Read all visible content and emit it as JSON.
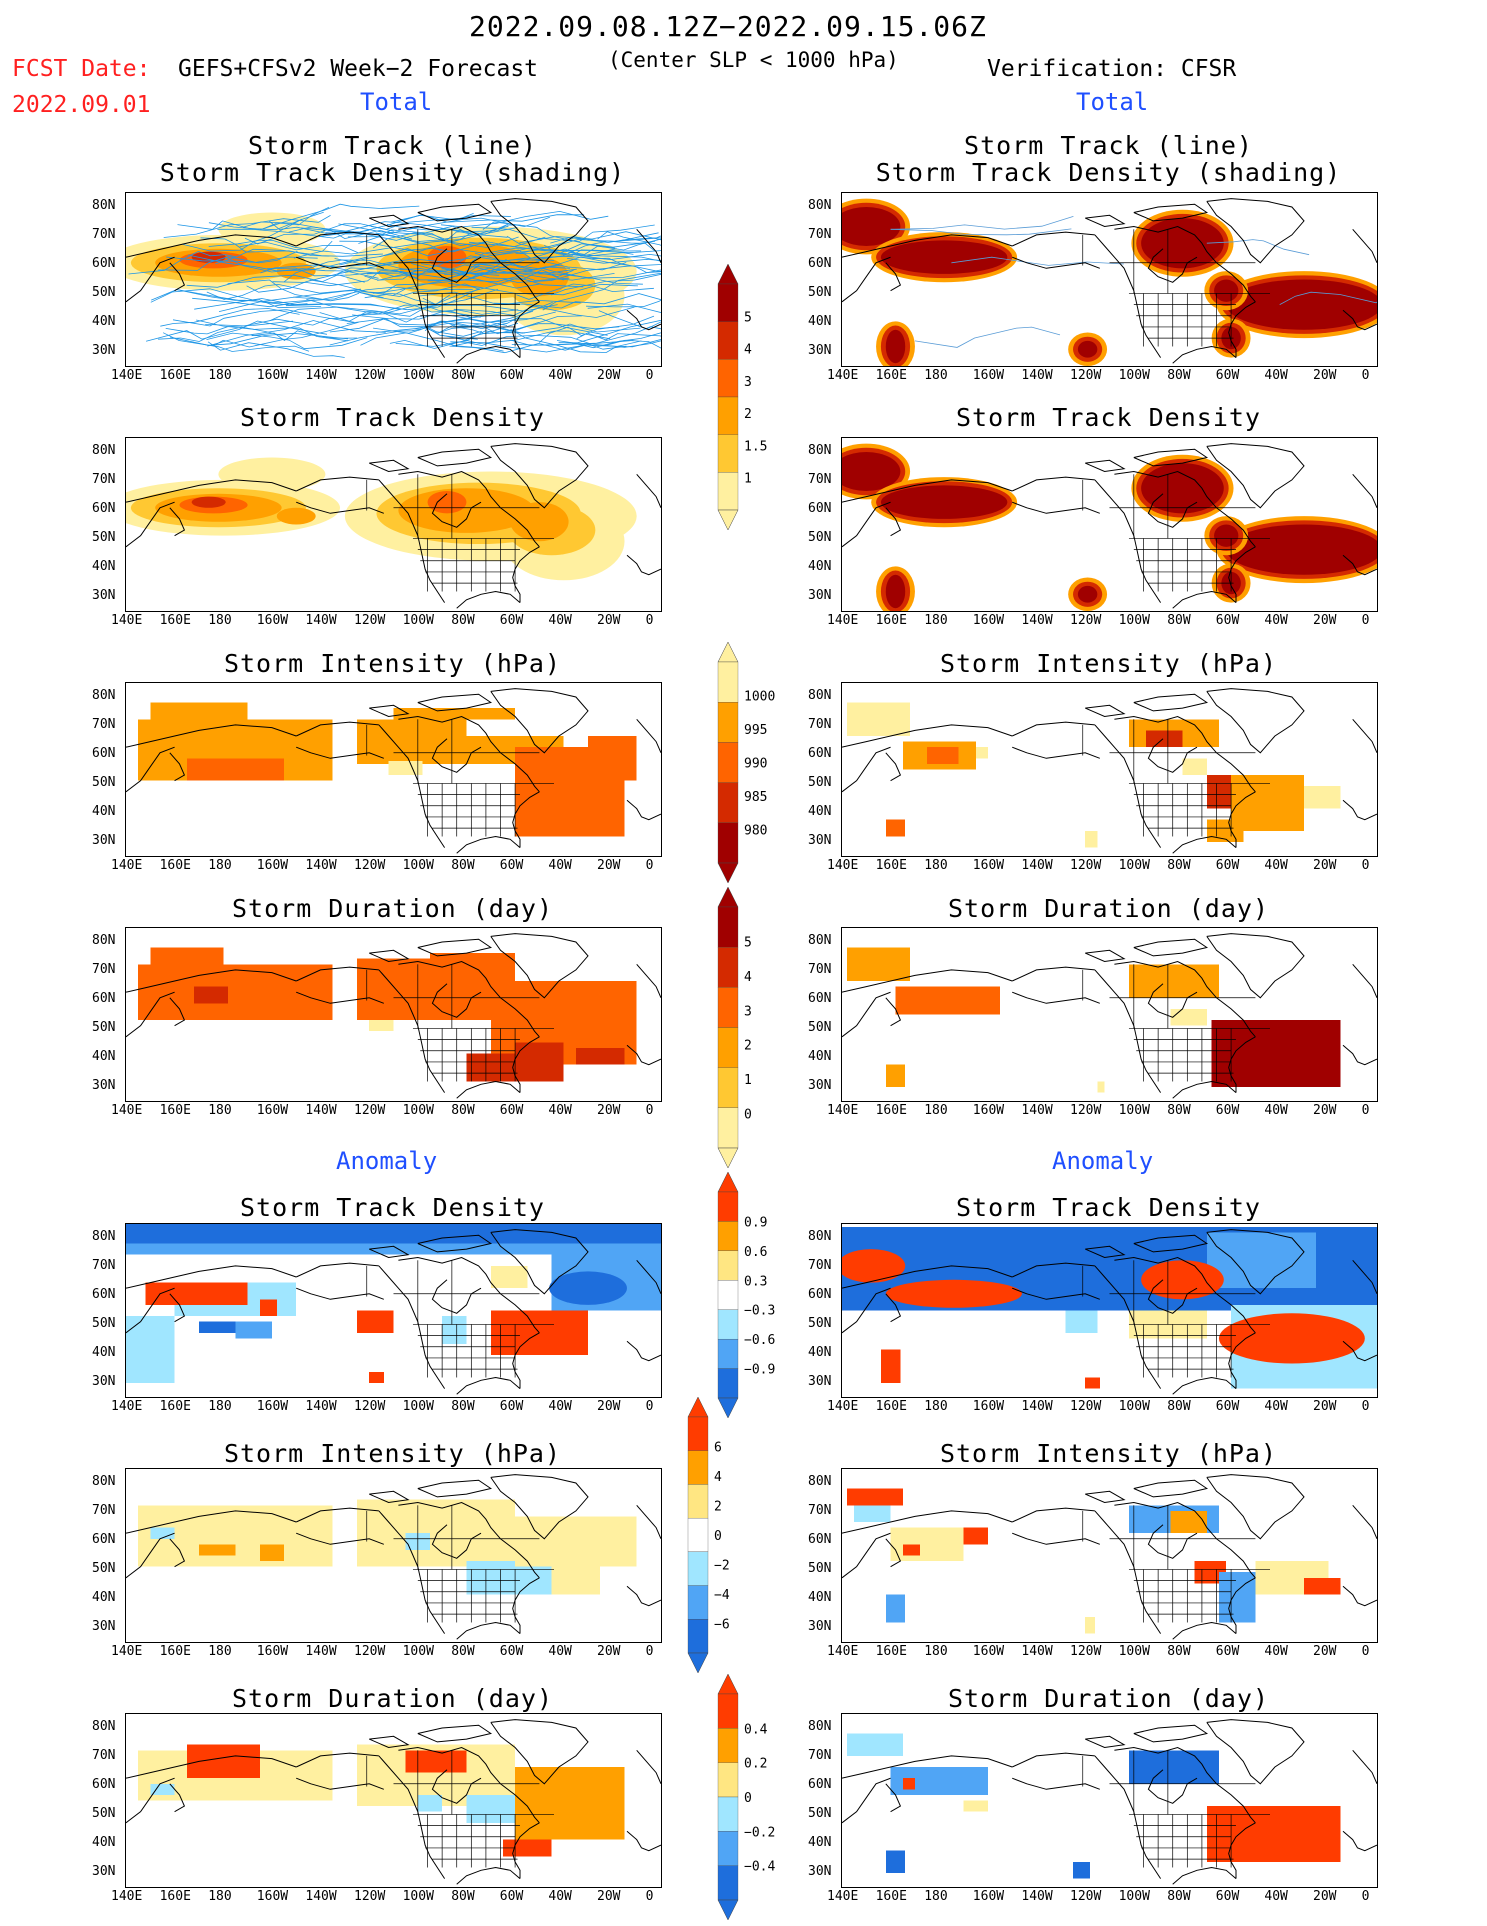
{
  "header": {
    "period": "2022.09.08.12Z−2022.09.15.06Z",
    "fcst_label": "FCST Date:",
    "fcst_date": "2022.09.01",
    "forecast_title": "GEFS+CFSv2 Week−2 Forecast",
    "center_note": "(Center SLP < 1000 hPa)",
    "verification": "Verification: CFSR"
  },
  "section_labels": {
    "total": "Total",
    "anomaly": "Anomaly"
  },
  "panel_titles": {
    "track_line": "Storm Track (line)",
    "track_density_shading": "Storm Track Density (shading)",
    "track_density": "Storm Track Density",
    "intensity": "Storm Intensity (hPa)",
    "duration": "Storm Duration (day)"
  },
  "axes": {
    "lon_labels": [
      "140E",
      "160E",
      "180",
      "160W",
      "140W",
      "120W",
      "100W",
      "80W",
      "60W",
      "40W",
      "20W",
      "0"
    ],
    "lat_labels": [
      "80N",
      "70N",
      "60N",
      "50N",
      "40N",
      "30N"
    ]
  },
  "colorbars": {
    "density_total": {
      "labels": [
        "5",
        "4",
        "3",
        "2",
        "1.5",
        "1"
      ],
      "colors": [
        "#a00000",
        "#d42a00",
        "#ff6400",
        "#ffa000",
        "#ffc832",
        "#fff0a0"
      ]
    },
    "intensity_total": {
      "labels": [
        "1000",
        "995",
        "990",
        "985",
        "980"
      ],
      "colors": [
        "#fff0a0",
        "#ffa000",
        "#ff6400",
        "#d42a00",
        "#a00000"
      ]
    },
    "duration_total": {
      "labels": [
        "5",
        "4",
        "3",
        "2",
        "1",
        "0"
      ],
      "colors": [
        "#a00000",
        "#d42a00",
        "#ff6400",
        "#ffa000",
        "#ffc832",
        "#fff0a0"
      ]
    },
    "density_anom": {
      "labels": [
        "0.9",
        "0.6",
        "0.3",
        "−0.3",
        "−0.6",
        "−0.9"
      ],
      "colors": [
        "#ff3c00",
        "#ffa000",
        "#ffe682",
        "#ffffff",
        "#a0e6ff",
        "#50a5f5",
        "#1e6edc"
      ]
    },
    "intensity_anom": {
      "labels": [
        "6",
        "4",
        "2",
        "0",
        "−2",
        "−4",
        "−6"
      ],
      "colors": [
        "#ff3c00",
        "#ffa000",
        "#ffe682",
        "#ffffff",
        "#a0e6ff",
        "#50a5f5",
        "#1e6edc"
      ]
    },
    "duration_anom": {
      "labels": [
        "0.4",
        "0.2",
        "0",
        "−0.2",
        "−0.4"
      ],
      "colors": [
        "#ff3c00",
        "#ffa000",
        "#ffe682",
        "#a0e6ff",
        "#50a5f5",
        "#1e6edc"
      ]
    }
  }
}
